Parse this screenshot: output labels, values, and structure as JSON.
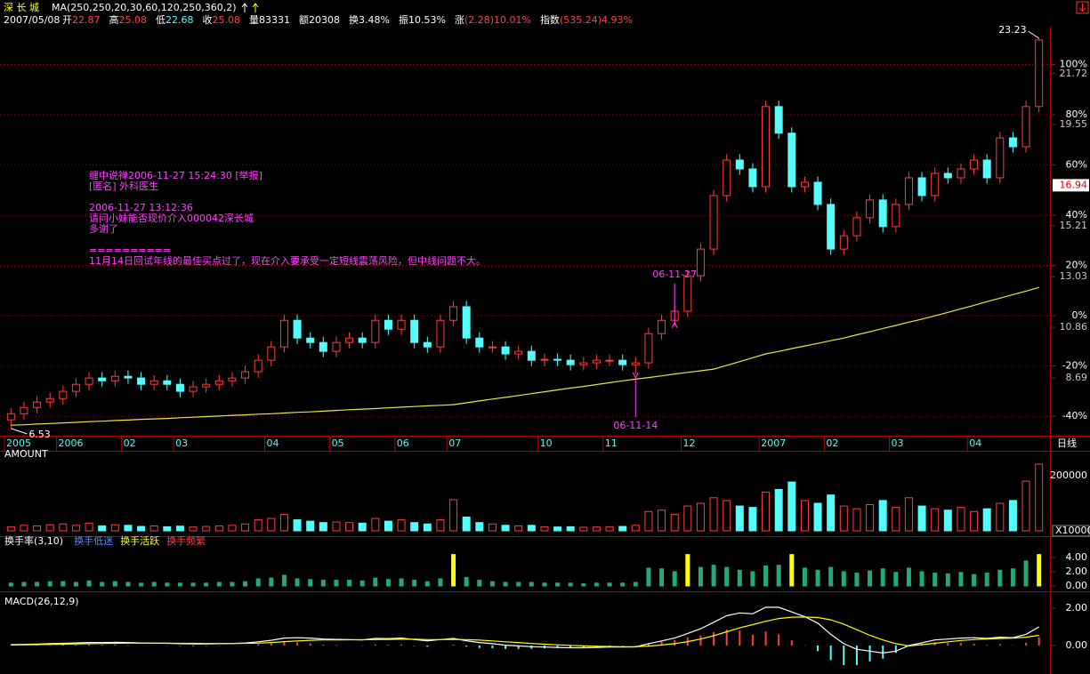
{
  "header": {
    "date": "2007/05/08",
    "quote": [
      {
        "label": "开",
        "value": "22.87",
        "color": "#ff4040"
      },
      {
        "label": "高",
        "value": "25.08",
        "color": "#ff4040"
      },
      {
        "label": "低",
        "value": "22.68",
        "color": "#54fcfc"
      },
      {
        "label": "收",
        "value": "25.08",
        "color": "#ff4040"
      },
      {
        "label": "量",
        "value": "83331",
        "color": "#ffffff"
      },
      {
        "label": "额",
        "value": "20308",
        "color": "#ffffff"
      },
      {
        "label": "换",
        "value": "3.48%",
        "color": "#ffffff"
      },
      {
        "label": "振",
        "value": "10.53%",
        "color": "#ffffff"
      },
      {
        "label": "涨",
        "value": "(2.28)10.01%",
        "color": "#ff4040"
      },
      {
        "label": "指数",
        "value": "(535.24)4.93%",
        "color": "#ff4040"
      }
    ]
  },
  "chart_data": [
    {
      "type": "candlestick",
      "title": "深 长 城",
      "indicator": "MA(250,250,20,30,60,120,250,360,2)",
      "period": "日线",
      "categories": [
        "2005",
        null,
        null,
        null,
        "2006",
        null,
        null,
        null,
        null,
        "02",
        null,
        null,
        null,
        "03",
        null,
        null,
        null,
        null,
        null,
        null,
        "04",
        null,
        null,
        null,
        null,
        "05",
        null,
        null,
        null,
        null,
        "06",
        null,
        null,
        null,
        "07",
        null,
        null,
        null,
        null,
        null,
        null,
        "10",
        null,
        null,
        null,
        null,
        "11",
        null,
        null,
        null,
        null,
        null,
        "12",
        null,
        null,
        null,
        null,
        null,
        "2007",
        null,
        null,
        null,
        null,
        "02",
        null,
        null,
        null,
        null,
        "03",
        null,
        null,
        null,
        null,
        null,
        "04",
        null,
        null,
        null,
        null,
        null
      ],
      "open": [
        6.9,
        7.16,
        7.43,
        7.66,
        7.81,
        8.12,
        8.42,
        8.69,
        8.57,
        8.76,
        8.69,
        8.42,
        8.57,
        8.42,
        8.12,
        8.31,
        8.42,
        8.57,
        8.69,
        8.96,
        9.45,
        10.02,
        11.16,
        10.4,
        10.21,
        9.83,
        10.21,
        10.4,
        10.21,
        11.16,
        10.78,
        11.16,
        10.21,
        10.02,
        11.16,
        11.74,
        10.4,
        10.02,
        10.02,
        9.72,
        9.83,
        9.45,
        9.49,
        9.45,
        9.26,
        9.34,
        9.45,
        9.45,
        9.26,
        9.34,
        10.59,
        11.16,
        11.55,
        13.07,
        14.21,
        16.5,
        18.02,
        17.64,
        16.88,
        20.31,
        19.17,
        16.88,
        17.07,
        16.12,
        14.21,
        14.78,
        15.55,
        16.31,
        15.17,
        16.12,
        17.26,
        16.5,
        17.45,
        17.26,
        17.64,
        18.02,
        17.26,
        18.97,
        18.59,
        20.31
      ],
      "high": [
        7.41,
        7.68,
        7.91,
        8.06,
        8.37,
        8.67,
        8.94,
        8.94,
        9.01,
        9.01,
        8.94,
        8.82,
        8.82,
        8.67,
        8.56,
        8.67,
        8.82,
        8.94,
        9.21,
        9.7,
        10.27,
        11.41,
        11.41,
        10.65,
        10.46,
        10.46,
        10.65,
        10.65,
        11.41,
        11.41,
        11.41,
        11.41,
        10.46,
        11.41,
        11.99,
        11.99,
        10.65,
        10.27,
        10.27,
        10.08,
        10.08,
        9.74,
        9.74,
        9.7,
        9.59,
        9.7,
        9.7,
        9.7,
        9.59,
        10.84,
        11.41,
        11.8,
        13.32,
        14.46,
        16.75,
        18.27,
        18.27,
        17.89,
        20.56,
        20.56,
        19.42,
        17.32,
        17.32,
        16.37,
        15.03,
        15.8,
        16.56,
        16.56,
        16.37,
        17.51,
        17.51,
        17.7,
        17.7,
        17.89,
        18.27,
        18.27,
        19.22,
        19.22,
        20.56,
        23.23
      ],
      "low": [
        6.53,
        6.91,
        7.18,
        7.41,
        7.56,
        7.87,
        8.17,
        8.32,
        8.32,
        8.44,
        8.17,
        8.17,
        8.17,
        7.87,
        7.87,
        8.06,
        8.17,
        8.32,
        8.44,
        8.71,
        9.2,
        9.77,
        10.15,
        9.96,
        9.58,
        9.58,
        9.96,
        9.96,
        9.96,
        10.53,
        10.53,
        9.96,
        9.77,
        9.77,
        10.91,
        10.15,
        9.77,
        9.77,
        9.47,
        9.47,
        9.2,
        9.2,
        9.2,
        9.01,
        9.01,
        9.09,
        9.2,
        9.01,
        8.85,
        9.09,
        10.34,
        10.91,
        11.3,
        12.82,
        13.96,
        16.25,
        17.39,
        16.63,
        16.63,
        18.92,
        16.63,
        16.63,
        15.87,
        13.96,
        13.96,
        14.53,
        15.3,
        14.92,
        14.92,
        15.87,
        16.25,
        16.25,
        17.01,
        17.01,
        17.39,
        17.01,
        17.01,
        18.34,
        18.34,
        20.06
      ],
      "close": [
        7.16,
        7.43,
        7.66,
        7.81,
        8.12,
        8.42,
        8.69,
        8.57,
        8.76,
        8.69,
        8.42,
        8.57,
        8.42,
        8.12,
        8.31,
        8.42,
        8.57,
        8.69,
        8.96,
        9.45,
        10.02,
        11.16,
        10.4,
        10.21,
        9.83,
        10.21,
        10.4,
        10.21,
        11.16,
        10.78,
        11.16,
        10.21,
        10.02,
        11.16,
        11.74,
        10.4,
        10.02,
        10.02,
        9.72,
        9.83,
        9.45,
        9.49,
        9.45,
        9.26,
        9.34,
        9.45,
        9.45,
        9.26,
        9.34,
        10.59,
        11.16,
        11.55,
        13.07,
        14.21,
        16.5,
        18.02,
        17.64,
        16.88,
        20.31,
        19.17,
        16.88,
        17.07,
        16.12,
        14.21,
        14.78,
        15.55,
        16.31,
        15.17,
        16.12,
        17.26,
        16.5,
        17.45,
        17.26,
        17.64,
        18.02,
        17.26,
        18.97,
        18.59,
        20.31,
        23.16
      ],
      "up_color": "#ff3c3c",
      "down_color": "#54fcfc",
      "ma": {
        "color": "#e8e840",
        "values": [
          6.67,
          6.69,
          6.72,
          6.74,
          6.77,
          6.79,
          6.82,
          6.84,
          6.87,
          6.89,
          6.92,
          6.94,
          6.96,
          6.99,
          7.01,
          7.04,
          7.06,
          7.09,
          7.11,
          7.14,
          7.16,
          7.19,
          7.22,
          7.24,
          7.27,
          7.3,
          7.33,
          7.36,
          7.38,
          7.41,
          7.44,
          7.47,
          7.5,
          7.52,
          7.55,
          7.63,
          7.71,
          7.79,
          7.86,
          7.94,
          8.02,
          8.1,
          8.18,
          8.26,
          8.33,
          8.41,
          8.49,
          8.57,
          8.64,
          8.71,
          8.78,
          8.86,
          8.93,
          9.0,
          9.07,
          9.23,
          9.39,
          9.56,
          9.72,
          9.83,
          9.95,
          10.06,
          10.17,
          10.29,
          10.4,
          10.54,
          10.67,
          10.81,
          10.94,
          11.08,
          11.21,
          11.35,
          11.5,
          11.65,
          11.8,
          11.96,
          12.11,
          12.26,
          12.41,
          12.57
        ]
      },
      "ylim": [
        6.22,
        24.11
      ],
      "yticks": [
        8.69,
        10.86,
        13.03,
        15.21,
        19.55,
        21.72
      ],
      "y2lim": [
        -47.8,
        118.6
      ],
      "y2ticks": [
        {
          "value": -40,
          "label": "-40%"
        },
        {
          "value": -20,
          "label": "-20%"
        },
        {
          "value": 0,
          "label": "0%"
        },
        {
          "value": 20,
          "label": "20%"
        },
        {
          "value": 40,
          "label": "40%"
        },
        {
          "value": 60,
          "label": "60%"
        },
        {
          "value": 80,
          "label": "80%"
        },
        {
          "value": 100,
          "label": "100%"
        }
      ],
      "grid": true,
      "current_price": 16.94,
      "markers": [
        "06-11-27",
        "06-11-14"
      ],
      "comment": [
        "缠中说禅2006-11-27 15:24:30 [举报]",
        "[匿名] 外科医生",
        "2006-11-27 13:12:36",
        "请问小妹能否现价介入000042深长城",
        "多谢了",
        "==========",
        "11月14日回试年线的最佳买点过了，现在介入要承受一定短线震荡风险，但中线问题不大。"
      ]
    },
    {
      "type": "bar",
      "title": "AMOUNT",
      "unit": "X10000",
      "values": [
        15000,
        20000,
        18000,
        22000,
        25000,
        20000,
        28000,
        18000,
        22000,
        20000,
        16000,
        18000,
        15000,
        17000,
        14000,
        16000,
        18000,
        20000,
        25000,
        40000,
        45000,
        60000,
        40000,
        35000,
        30000,
        32000,
        30000,
        28000,
        45000,
        35000,
        40000,
        30000,
        25000,
        40000,
        113000,
        50000,
        30000,
        25000,
        20000,
        18000,
        20000,
        15000,
        14000,
        15000,
        13000,
        14000,
        15000,
        16000,
        20000,
        70000,
        75000,
        60000,
        90000,
        100000,
        120000,
        110000,
        90000,
        85000,
        140000,
        150000,
        177000,
        110000,
        100000,
        130000,
        90000,
        80000,
        95000,
        110000,
        85000,
        120000,
        90000,
        80000,
        75000,
        85000,
        70000,
        80000,
        100000,
        110000,
        180000,
        242000
      ],
      "ylim": [
        0,
        274000
      ],
      "yticks": [
        200000
      ]
    },
    {
      "type": "bar",
      "title": "换手率(3,10)",
      "legend": [
        {
          "name": "换手低迷",
          "color": "#5a8cff"
        },
        {
          "name": "换手活跃",
          "color": "#ffff00"
        },
        {
          "name": "换手频繁",
          "color": "#ff3c3c"
        }
      ],
      "values": [
        0.4,
        0.5,
        0.5,
        0.6,
        0.6,
        0.5,
        0.7,
        0.5,
        0.6,
        0.5,
        0.4,
        0.5,
        0.4,
        0.4,
        0.4,
        0.4,
        0.5,
        0.5,
        0.6,
        1.0,
        1.1,
        1.5,
        1.0,
        0.9,
        0.8,
        0.8,
        0.8,
        0.7,
        1.1,
        0.9,
        1.0,
        0.8,
        0.6,
        1.0,
        4.4,
        1.2,
        0.8,
        0.6,
        0.5,
        0.5,
        0.5,
        0.4,
        0.4,
        0.4,
        0.3,
        0.4,
        0.4,
        0.4,
        0.5,
        2.5,
        2.4,
        2.0,
        4.4,
        2.6,
        2.9,
        2.6,
        2.2,
        2.0,
        2.8,
        2.9,
        4.4,
        2.5,
        2.2,
        2.6,
        2.0,
        1.8,
        2.1,
        2.4,
        1.9,
        2.5,
        2.0,
        1.8,
        1.7,
        1.9,
        1.6,
        1.8,
        2.2,
        2.4,
        3.5,
        4.4
      ],
      "colors": [
        "#2a7",
        "#2a7",
        "#2a7",
        "#2a7",
        "#2a7",
        "#2a7",
        "#2a7",
        "#2a7",
        "#2a7",
        "#2a7",
        "#2a7",
        "#2a7",
        "#2a7",
        "#2a7",
        "#2a7",
        "#2a7",
        "#2a7",
        "#2a7",
        "#2a7",
        "#2a7",
        "#2a7",
        "#2a7",
        "#2a7",
        "#2a7",
        "#2a7",
        "#2a7",
        "#2a7",
        "#2a7",
        "#2a7",
        "#2a7",
        "#2a7",
        "#2a7",
        "#2a7",
        "#2a7",
        "#ff0",
        "#2a7",
        "#2a7",
        "#2a7",
        "#2a7",
        "#2a7",
        "#2a7",
        "#2a7",
        "#2a7",
        "#2a7",
        "#2a7",
        "#2a7",
        "#2a7",
        "#2a7",
        "#2a7",
        "#2a7",
        "#2a7",
        "#2a7",
        "#ff0",
        "#2a7",
        "#2a7",
        "#2a7",
        "#2a7",
        "#2a7",
        "#2a7",
        "#2a7",
        "#ff0",
        "#2a7",
        "#2a7",
        "#2a7",
        "#2a7",
        "#2a7",
        "#2a7",
        "#2a7",
        "#2a7",
        "#2a7",
        "#2a7",
        "#2a7",
        "#2a7",
        "#2a7",
        "#2a7",
        "#2a7",
        "#2a7",
        "#2a7",
        "#2a7",
        "#ff0"
      ],
      "ylim": [
        -0.5,
        6.1
      ],
      "yticks": [
        {
          "value": 0,
          "label": "0.00"
        },
        {
          "value": 2,
          "label": "2.00"
        },
        {
          "value": 4,
          "label": "4.00"
        }
      ]
    },
    {
      "type": "macd",
      "title": "MACD(26,12,9)",
      "dif": {
        "color": "#ffffff",
        "values": [
          0.05,
          0.06,
          0.08,
          0.1,
          0.12,
          0.14,
          0.16,
          0.16,
          0.17,
          0.16,
          0.14,
          0.13,
          0.12,
          0.1,
          0.09,
          0.09,
          0.1,
          0.11,
          0.14,
          0.2,
          0.28,
          0.4,
          0.42,
          0.4,
          0.35,
          0.33,
          0.32,
          0.3,
          0.38,
          0.37,
          0.4,
          0.32,
          0.26,
          0.32,
          0.38,
          0.26,
          0.16,
          0.1,
          0.02,
          -0.02,
          -0.06,
          -0.08,
          -0.1,
          -0.12,
          -0.12,
          -0.1,
          -0.08,
          -0.08,
          -0.07,
          0.1,
          0.25,
          0.4,
          0.65,
          0.9,
          1.25,
          1.6,
          1.75,
          1.7,
          2.05,
          2.05,
          1.8,
          1.55,
          1.2,
          0.6,
          0.1,
          -0.2,
          -0.3,
          -0.4,
          -0.3,
          0.0,
          0.15,
          0.3,
          0.35,
          0.4,
          0.42,
          0.38,
          0.45,
          0.42,
          0.6,
          1.0
        ]
      },
      "dea": {
        "color": "#ffff00",
        "values": [
          0.03,
          0.04,
          0.05,
          0.06,
          0.07,
          0.09,
          0.1,
          0.11,
          0.12,
          0.13,
          0.13,
          0.13,
          0.13,
          0.12,
          0.12,
          0.11,
          0.11,
          0.11,
          0.12,
          0.13,
          0.16,
          0.21,
          0.25,
          0.28,
          0.3,
          0.3,
          0.31,
          0.31,
          0.32,
          0.33,
          0.34,
          0.34,
          0.32,
          0.32,
          0.33,
          0.32,
          0.29,
          0.25,
          0.2,
          0.16,
          0.11,
          0.07,
          0.04,
          0.01,
          -0.02,
          -0.04,
          -0.05,
          -0.06,
          -0.06,
          -0.03,
          0.03,
          0.1,
          0.21,
          0.35,
          0.53,
          0.74,
          0.95,
          1.12,
          1.3,
          1.45,
          1.52,
          1.53,
          1.5,
          1.38,
          1.15,
          0.85,
          0.55,
          0.3,
          0.1,
          -0.02,
          0.05,
          0.12,
          0.2,
          0.27,
          0.32,
          0.35,
          0.38,
          0.4,
          0.45,
          0.55
        ]
      },
      "hist": [
        0.02,
        0.02,
        0.03,
        0.04,
        0.05,
        0.05,
        0.06,
        0.05,
        0.05,
        0.03,
        0.01,
        0,
        -0.01,
        -0.02,
        -0.03,
        -0.02,
        -0.01,
        0,
        0.02,
        0.07,
        0.12,
        0.19,
        0.17,
        0.12,
        0.05,
        0.03,
        0.01,
        -0.01,
        0.06,
        0.04,
        0.06,
        -0.02,
        -0.06,
        0,
        0.05,
        -0.06,
        -0.13,
        -0.15,
        -0.18,
        -0.18,
        -0.17,
        -0.15,
        -0.14,
        -0.13,
        -0.1,
        -0.06,
        -0.03,
        -0.02,
        -0.01,
        0.13,
        0.22,
        0.3,
        0.44,
        0.55,
        0.72,
        0.86,
        0.8,
        0.58,
        0.75,
        0.6,
        0.28,
        0.02,
        -0.3,
        -0.78,
        -1.05,
        -1.05,
        -0.85,
        -0.7,
        -0.4,
        0.02,
        0.1,
        0.18,
        0.15,
        0.13,
        0.1,
        0.03,
        0.07,
        0.02,
        0.15,
        0.45
      ],
      "ylim": [
        -1.43,
        2.67
      ],
      "yticks": [
        {
          "value": 0,
          "label": "0.00"
        },
        {
          "value": 2,
          "label": "2.00"
        }
      ]
    }
  ]
}
